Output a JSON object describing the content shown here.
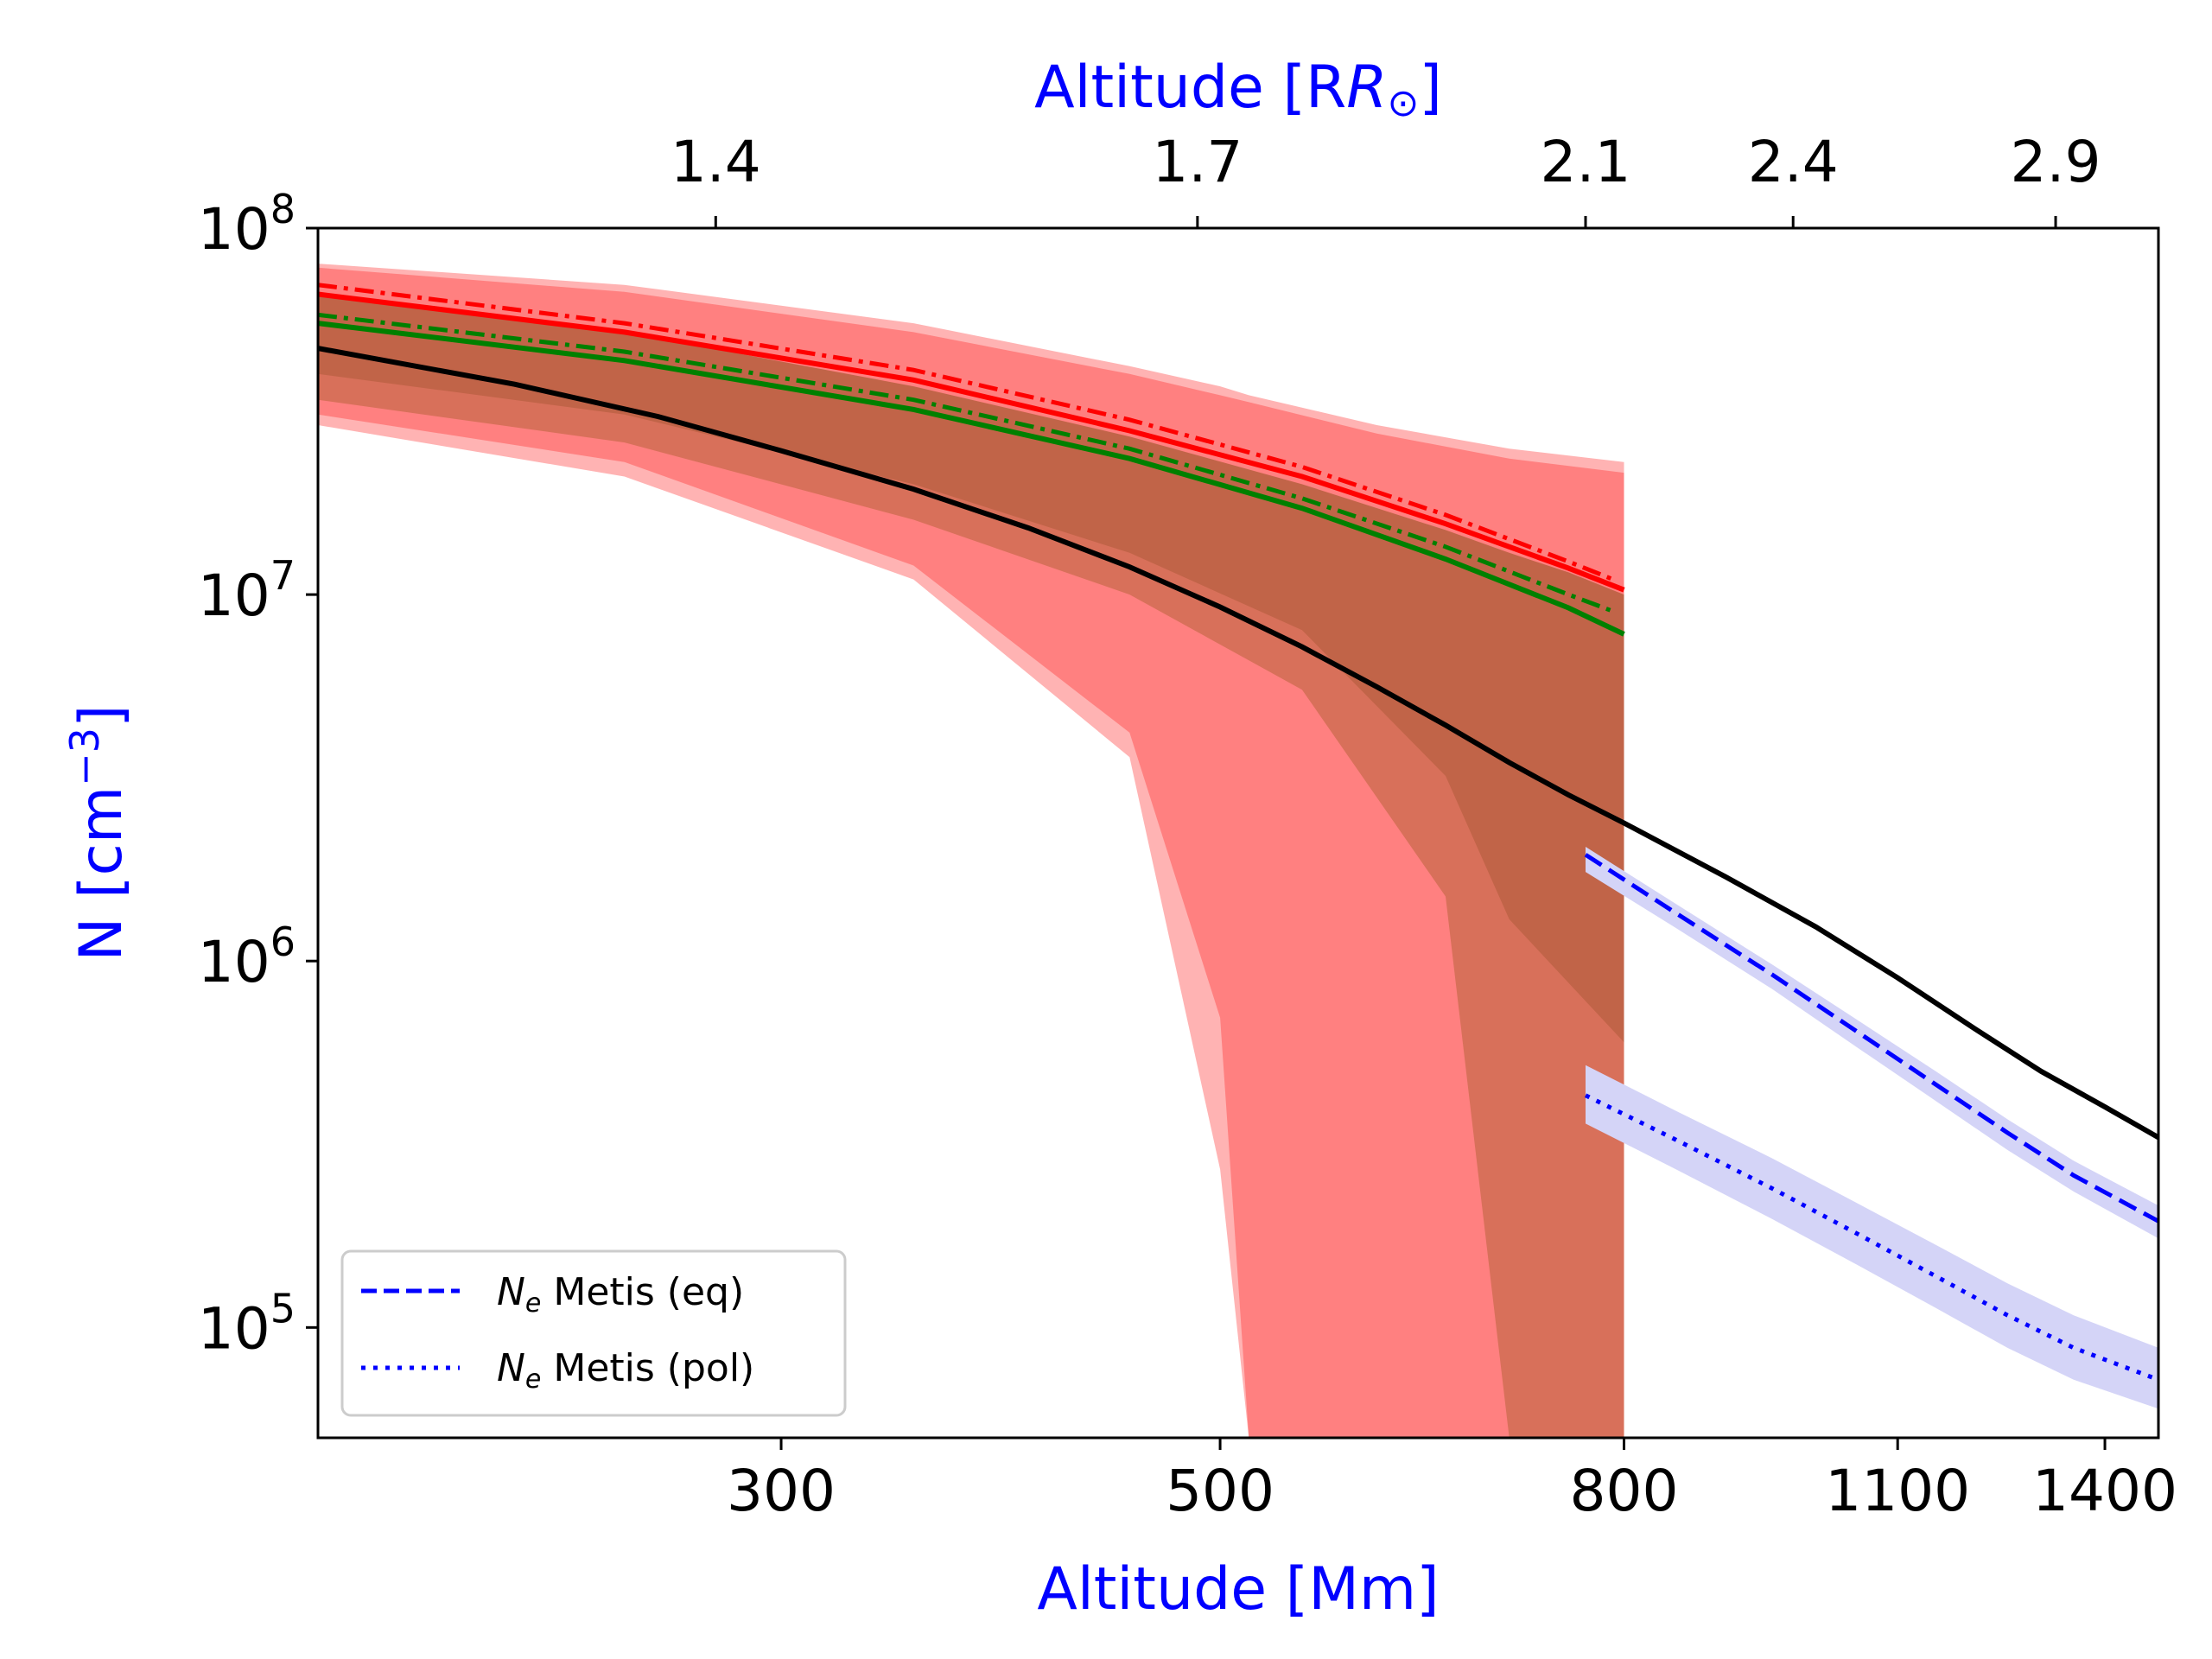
{
  "chart_data": {
    "type": "line",
    "xlabel": "Altitude [Mm]",
    "xlabel_top": "Altitude [R",
    "xlabel_top_symbol": "⊙",
    "xlabel_top_suffix": "]",
    "ylabel": "N [cm",
    "ylabel_exp": "−3",
    "ylabel_suffix": "]",
    "x_scale": "log",
    "y_scale": "log",
    "xlim": [
      175,
      1490
    ],
    "ylim": [
      50000,
      100000000
    ],
    "x_ticks": [
      {
        "value": 300,
        "label": "300"
      },
      {
        "value": 500,
        "label": "500"
      },
      {
        "value": 800,
        "label": "800"
      },
      {
        "value": 1100,
        "label": "1100"
      },
      {
        "value": 1400,
        "label": "1400"
      }
    ],
    "x_ticks_top": [
      {
        "value": 278,
        "label": "1.4"
      },
      {
        "value": 487,
        "label": "1.7"
      },
      {
        "value": 765,
        "label": "2.1"
      },
      {
        "value": 974,
        "label": "2.4"
      },
      {
        "value": 1322,
        "label": "2.9"
      }
    ],
    "y_ticks": [
      {
        "value": 100000,
        "base": "10",
        "exp": "5"
      },
      {
        "value": 1000000,
        "base": "10",
        "exp": "6"
      },
      {
        "value": 10000000,
        "base": "10",
        "exp": "7"
      },
      {
        "value": 100000000,
        "base": "10",
        "exp": "8"
      }
    ],
    "series": [
      {
        "name": "black model density",
        "color": "#000000",
        "style": "solid",
        "x": [
          175,
          220,
          260,
          300,
          350,
          400,
          450,
          500,
          550,
          600,
          650,
          700,
          750,
          800,
          900,
          1000,
          1100,
          1200,
          1300,
          1400,
          1490
        ],
        "y": [
          47000000,
          37500000,
          30600000,
          24700000,
          19400000,
          15200000,
          11900000,
          9250000,
          7200000,
          5600000,
          4400000,
          3480000,
          2840000,
          2380000,
          1700000,
          1240000,
          900000,
          660000,
          500000,
          400000,
          330000
        ]
      },
      {
        "name": "red density (solid)",
        "color": "#ff0000",
        "style": "solid",
        "x": [
          175,
          250,
          350,
          450,
          550,
          650,
          750,
          800
        ],
        "y": [
          66000000,
          52000000,
          38500000,
          28000000,
          21000000,
          15600000,
          11800000,
          10300000
        ]
      },
      {
        "name": "red density (dash-dot)",
        "color": "#ff0000",
        "style": "dashdot",
        "x": [
          175,
          250,
          350,
          450,
          550,
          650,
          750,
          790
        ],
        "y": [
          70000000,
          55000000,
          41000000,
          30000000,
          22300000,
          16500000,
          12300000,
          11000000
        ]
      },
      {
        "name": "green density (solid)",
        "color": "#008000",
        "style": "solid",
        "x": [
          175,
          250,
          350,
          450,
          550,
          650,
          750,
          800
        ],
        "y": [
          55000000,
          43500000,
          32000000,
          23500000,
          17200000,
          12500000,
          9200000,
          7800000
        ]
      },
      {
        "name": "green density (dash-dot)",
        "color": "#008000",
        "style": "dashdot",
        "x": [
          175,
          250,
          350,
          450,
          550,
          650,
          750,
          790
        ],
        "y": [
          58000000,
          46000000,
          34000000,
          25000000,
          18300000,
          13500000,
          10000000,
          9000000
        ]
      },
      {
        "name": "N_e Metis (eq)",
        "color": "#0000ff",
        "style": "dashed",
        "x": [
          765,
          850,
          950,
          1050,
          1150,
          1250,
          1350,
          1490
        ],
        "y": [
          1950000,
          1350000,
          920000,
          640000,
          460000,
          340000,
          260000,
          195000
        ]
      },
      {
        "name": "N_e Metis (pol)",
        "color": "#0000ff",
        "style": "dotted",
        "x": [
          765,
          850,
          950,
          1050,
          1150,
          1250,
          1350,
          1490
        ],
        "y": [
          430000,
          325000,
          240000,
          180000,
          138000,
          108000,
          88000,
          72000
        ]
      }
    ],
    "bands": [
      {
        "name": "outer uncertainty band (light red)",
        "color": "#ffb3b3",
        "x": [
          175,
          250,
          350,
          450,
          500,
          517,
          600,
          700,
          800
        ],
        "upper": [
          80000000,
          70000000,
          55000000,
          42000000,
          37000000,
          35000000,
          29000000,
          25000000,
          23000000
        ],
        "lower": [
          29000000,
          21000000,
          11000000,
          3600000,
          270000,
          50000,
          50000,
          50000,
          50000
        ]
      },
      {
        "name": "uncertainty band (red)",
        "color": "#ff8080",
        "x": [
          175,
          250,
          350,
          450,
          500,
          517,
          600,
          700,
          800
        ],
        "upper": [
          78000000,
          67000000,
          52000000,
          40000000,
          35000000,
          33500000,
          27500000,
          23500000,
          21500000
        ],
        "lower": [
          31000000,
          23000000,
          12000000,
          4200000,
          700000,
          50000,
          50000,
          50000,
          50000
        ]
      },
      {
        "name": "uncertainty band (brown)",
        "color": "#c16448",
        "x": [
          175,
          250,
          350,
          450,
          550,
          650,
          700,
          750,
          800
        ],
        "upper": [
          65000000,
          52000000,
          37000000,
          27000000,
          20000000,
          15000000,
          13000000,
          11500000,
          10000000
        ],
        "lower": [
          36000000,
          28000000,
          19000000,
          12000000,
          7000000,
          2800000,
          1200000,
          280000,
          50000
        ]
      },
      {
        "name": "uncertainty band (light brown)",
        "color": "#d8705a",
        "x": [
          175,
          250,
          350,
          450,
          550,
          650,
          700,
          800
        ],
        "upper": [
          40000000,
          31000000,
          20000000,
          13000000,
          8000000,
          3200000,
          1300000,
          600000
        ],
        "lower": [
          34000000,
          26000000,
          16000000,
          10000000,
          5500000,
          1500000,
          50000,
          50000
        ]
      },
      {
        "name": "Metis (eq) uncertainty",
        "color": "#d4d4f7",
        "x": [
          765,
          850,
          950,
          1050,
          1150,
          1250,
          1350,
          1490
        ],
        "upper": [
          2050000,
          1430000,
          980000,
          690000,
          500000,
          370000,
          285000,
          215000
        ],
        "lower": [
          1750000,
          1230000,
          840000,
          580000,
          415000,
          305000,
          235000,
          175000
        ]
      },
      {
        "name": "Metis (pol) uncertainty",
        "color": "#d4d4f7",
        "x": [
          765,
          850,
          950,
          1050,
          1150,
          1250,
          1350,
          1490
        ],
        "upper": [
          520000,
          390000,
          290000,
          218000,
          168000,
          132000,
          108000,
          88000
        ],
        "lower": [
          360000,
          270000,
          198000,
          148000,
          113000,
          88000,
          72000,
          60000
        ]
      }
    ],
    "legend": {
      "position": "lower-left",
      "entries": [
        {
          "label_symbol": "N",
          "label_sub": "e",
          "label_text": " Metis (eq)",
          "style": "dashed",
          "color": "#0000ff"
        },
        {
          "label_symbol": "N",
          "label_sub": "e",
          "label_text": " Metis (pol)",
          "style": "dotted",
          "color": "#0000ff"
        }
      ]
    }
  }
}
